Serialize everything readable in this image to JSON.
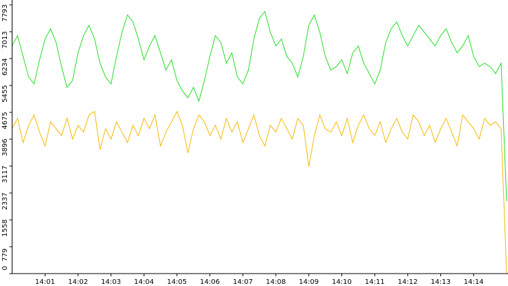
{
  "chart_data": {
    "type": "line",
    "categories": [
      null,
      null,
      null,
      null,
      null,
      null,
      "14:01",
      null,
      null,
      null,
      null,
      null,
      "14:02",
      null,
      null,
      null,
      null,
      null,
      "14:03",
      null,
      null,
      null,
      null,
      null,
      "14:04",
      null,
      null,
      null,
      null,
      null,
      "14:05",
      null,
      null,
      null,
      null,
      null,
      "14:06",
      null,
      null,
      null,
      null,
      null,
      "14:07",
      null,
      null,
      null,
      null,
      null,
      "14:08",
      null,
      null,
      null,
      null,
      null,
      "14:09",
      null,
      null,
      null,
      null,
      null,
      "14:10",
      null,
      null,
      null,
      null,
      null,
      "14:11",
      null,
      null,
      null,
      null,
      null,
      "14:12",
      null,
      null,
      null,
      null,
      null,
      "14:13",
      null,
      null,
      null,
      null,
      null,
      "14:14",
      null,
      null,
      null,
      null,
      null,
      null
    ],
    "series": [
      {
        "color": "#22dd22",
        "values": [
          6600,
          6900,
          6300,
          5700,
          5500,
          6200,
          6800,
          7100,
          6700,
          6000,
          5400,
          5600,
          6400,
          6900,
          7200,
          6800,
          6100,
          5700,
          5500,
          6300,
          7000,
          7500,
          7300,
          6800,
          6200,
          6600,
          6900,
          6400,
          5900,
          6200,
          5600,
          5300,
          5100,
          5400,
          5000,
          5600,
          6300,
          6900,
          6700,
          6100,
          6400,
          5700,
          5500,
          5900,
          6800,
          7400,
          7600,
          7000,
          6600,
          6800,
          6300,
          6100,
          5700,
          6300,
          7200,
          7500,
          7000,
          6300,
          5900,
          6000,
          6200,
          5800,
          6400,
          6600,
          6100,
          5800,
          5500,
          5900,
          6700,
          7100,
          7300,
          6900,
          6600,
          6900,
          7200,
          7000,
          6800,
          6600,
          6900,
          7100,
          6700,
          6400,
          6600,
          6900,
          6300,
          6000,
          6100,
          6000,
          5800,
          6100,
          2100
        ]
      },
      {
        "color": "#f5b800",
        "values": [
          4200,
          4500,
          3800,
          4300,
          4600,
          4100,
          3700,
          4400,
          4200,
          4000,
          4500,
          3900,
          4300,
          4100,
          4600,
          4700,
          3600,
          4200,
          3900,
          4400,
          4100,
          3800,
          4300,
          4000,
          4500,
          4200,
          4600,
          3700,
          4100,
          4400,
          4700,
          4300,
          3500,
          4200,
          4600,
          4400,
          4000,
          4300,
          3900,
          4500,
          4100,
          4400,
          3800,
          4200,
          4600,
          4000,
          3700,
          4300,
          4100,
          4500,
          4200,
          3900,
          4500,
          4300,
          3100,
          4000,
          4600,
          4200,
          4100,
          4400,
          4000,
          4500,
          3800,
          4300,
          4600,
          4200,
          4000,
          4400,
          3800,
          4200,
          4500,
          4100,
          3900,
          4600,
          4400,
          4000,
          4300,
          3800,
          4200,
          4500,
          4100,
          3700,
          4600,
          4400,
          4200,
          3900,
          4500,
          4300,
          4400,
          4200,
          0
        ]
      }
    ],
    "ylim": [
      0,
      7793
    ],
    "yticks": [
      0,
      779,
      1558,
      2337,
      3117,
      3896,
      4675,
      5455,
      6234,
      7013,
      7793
    ]
  }
}
